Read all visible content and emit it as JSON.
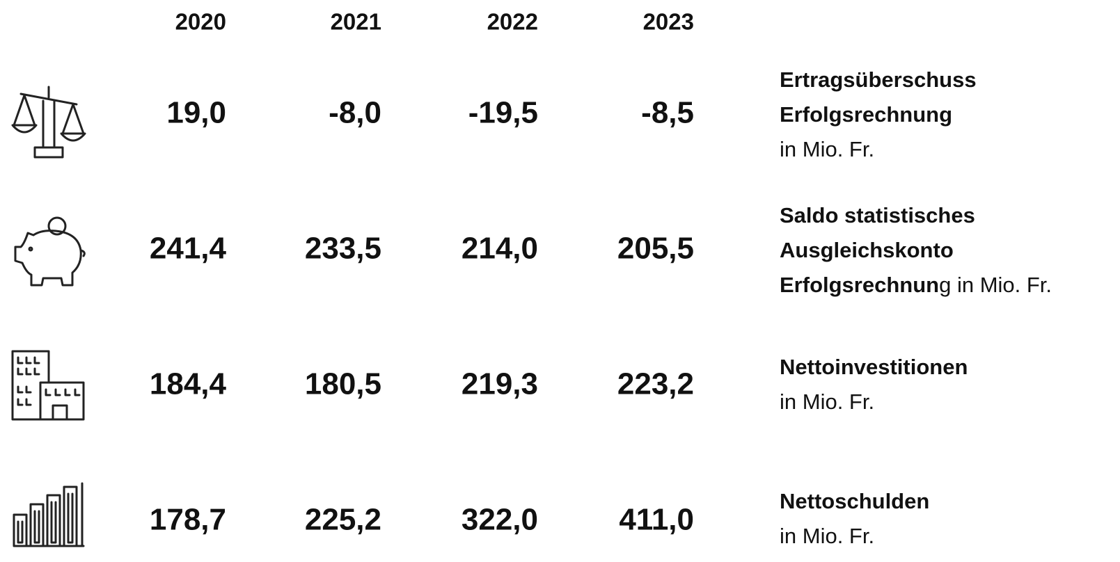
{
  "header": {
    "years": [
      "2020",
      "2021",
      "2022",
      "2023"
    ]
  },
  "rows": [
    {
      "values": [
        "19,0",
        "-8,0",
        "-19,5",
        "-8,5"
      ],
      "label": [
        [
          {
            "text": "Ertragsüberschuss",
            "bold": true
          }
        ],
        [
          {
            "text": "Erfolgsrechnung",
            "bold": true
          }
        ],
        [
          {
            "text": "in Mio. Fr.",
            "bold": false
          }
        ]
      ]
    },
    {
      "values": [
        "241,4",
        "233,5",
        "214,0",
        "205,5"
      ],
      "label": [
        [
          {
            "text": "Saldo statistisches",
            "bold": true
          }
        ],
        [
          {
            "text": "Ausgleichskonto",
            "bold": true
          }
        ],
        [
          {
            "text": "Erfolgsrechnun",
            "bold": true
          },
          {
            "text": "g in Mio. Fr.",
            "bold": false
          }
        ]
      ]
    },
    {
      "values": [
        "184,4",
        "180,5",
        "219,3",
        "223,2"
      ],
      "label": [
        [
          {
            "text": "Nettoinvestitionen",
            "bold": true
          }
        ],
        [
          {
            "text": "in Mio. Fr.",
            "bold": false
          }
        ]
      ]
    },
    {
      "values": [
        "178,7",
        "225,2",
        "322,0",
        "411,0"
      ],
      "label": [
        [
          {
            "text": "Nettoschulden",
            "bold": true
          }
        ],
        [
          {
            "text": "in Mio. Fr.",
            "bold": false
          }
        ]
      ]
    }
  ]
}
